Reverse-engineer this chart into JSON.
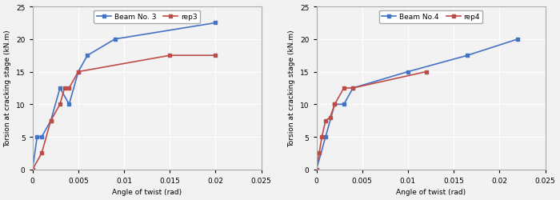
{
  "left": {
    "xlabel": "Angle of twist (rad)",
    "ylabel": "Torsion at cracking stage (kN.m)",
    "xlim": [
      0,
      0.025
    ],
    "ylim": [
      0,
      25
    ],
    "xticks": [
      0,
      0.005,
      0.01,
      0.015,
      0.02,
      0.025
    ],
    "yticks": [
      0,
      5,
      10,
      15,
      20,
      25
    ],
    "beam_x": [
      0,
      0.0005,
      0.001,
      0.002,
      0.003,
      0.004,
      0.005,
      0.006,
      0.009,
      0.02
    ],
    "beam_y": [
      0,
      5,
      5,
      7.5,
      12.5,
      10,
      15,
      17.5,
      20,
      22.5
    ],
    "rep_x": [
      0,
      0.001,
      0.002,
      0.003,
      0.0035,
      0.004,
      0.005,
      0.015,
      0.02
    ],
    "rep_y": [
      0,
      2.5,
      7.5,
      10,
      12.5,
      12.5,
      15,
      17.5,
      17.5
    ],
    "beam_label": "Beam No. 3",
    "rep_label": "rep3",
    "beam_color": "#4472C4",
    "rep_color": "#BE4B48"
  },
  "right": {
    "xlabel": "Angle of twist (rad)",
    "ylabel": "Torsion at cracking stage (kN.m)",
    "xlim": [
      0,
      0.025
    ],
    "ylim": [
      0,
      25
    ],
    "xticks": [
      0,
      0.005,
      0.01,
      0.015,
      0.02,
      0.025
    ],
    "yticks": [
      0,
      5,
      10,
      15,
      20,
      25
    ],
    "beam_x": [
      0,
      0.001,
      0.002,
      0.003,
      0.004,
      0.01,
      0.0165,
      0.022
    ],
    "beam_y": [
      0,
      5,
      10,
      10,
      12.5,
      15,
      17.5,
      20
    ],
    "rep_x": [
      0,
      0.0003,
      0.0006,
      0.001,
      0.0015,
      0.002,
      0.003,
      0.004,
      0.012
    ],
    "rep_y": [
      0,
      2.5,
      5,
      7.5,
      8,
      10,
      12.5,
      12.5,
      15
    ],
    "beam_label": "Beam No.4",
    "rep_label": "rep4",
    "beam_color": "#4472C4",
    "rep_color": "#BE4B48"
  },
  "bg_color": "#F2F2F2",
  "plot_bg_color": "#F2F2F2",
  "grid_color": "#FFFFFF",
  "marker": "s",
  "marker_size": 3,
  "line_width": 1.2,
  "font_size": 6.5,
  "tick_font_size": 6.5,
  "legend_font_size": 6.5
}
